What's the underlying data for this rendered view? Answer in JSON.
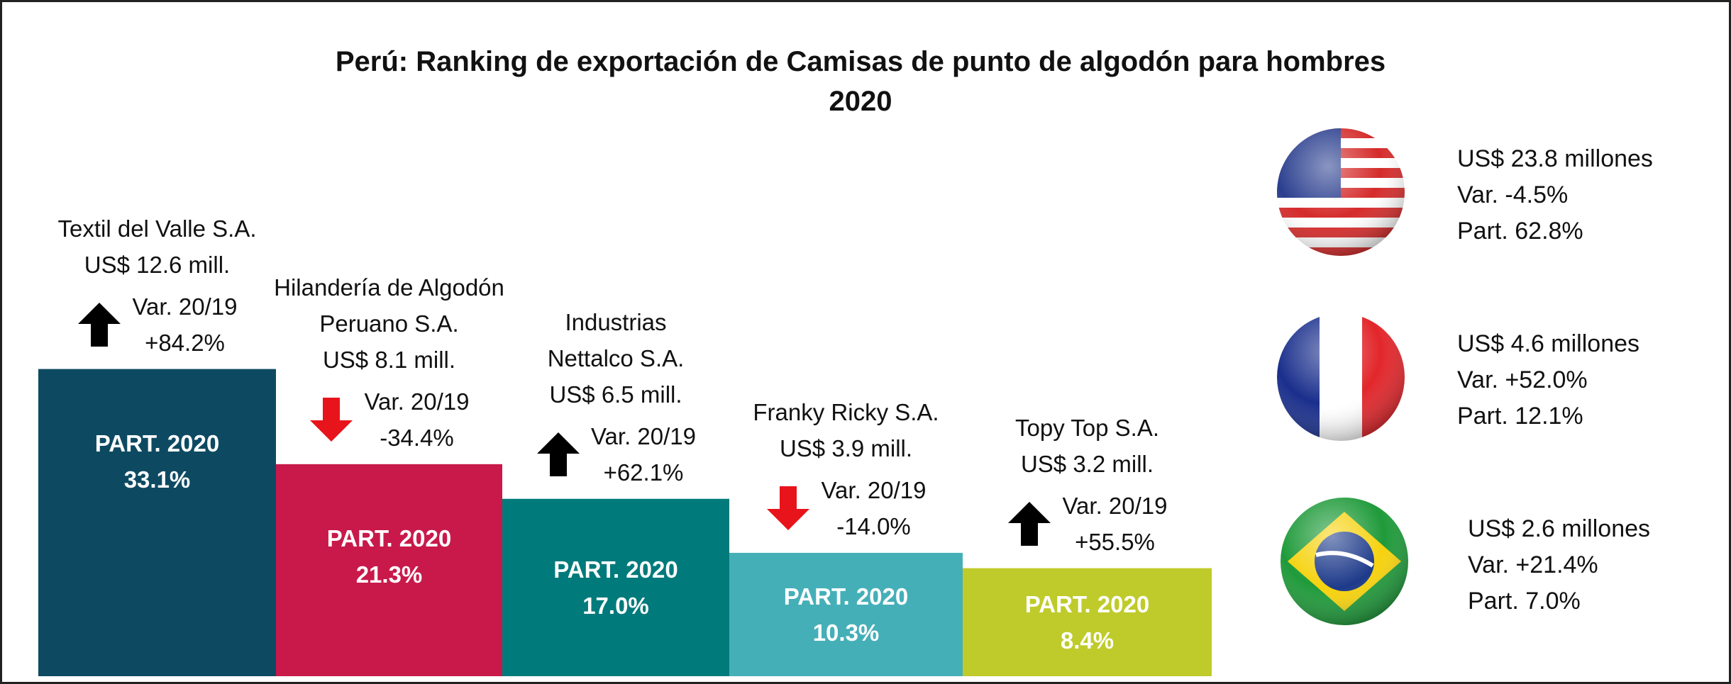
{
  "chart_data": {
    "type": "bar",
    "title": "Perú: Ranking de exportación de Camisas de punto de algodón para hombres",
    "subtitle": "2020",
    "categories": [
      "Textil del Valle S.A.",
      "Hilandería de Algodón Peruano S.A.",
      "Industrias Nettalco S.A.",
      "Franky Ricky S.A.",
      "Topy Top S.A."
    ],
    "export_labels": [
      "US$ 12.6 mill.",
      "US$ 8.1 mill.",
      "US$ 6.5 mill.",
      "US$ 3.9 mill.",
      "US$ 3.2 mill."
    ],
    "change_caption": "Var. 20/19",
    "changes": [
      84.2,
      -34.4,
      62.1,
      -14.0,
      55.5
    ],
    "change_labels": [
      "+84.2%",
      "-34.4%",
      "+62.1%",
      "-14.0%",
      "+55.5%"
    ],
    "share_caption": "PART. 2020",
    "values": [
      33.1,
      21.3,
      17.0,
      10.3,
      8.4
    ],
    "value_labels": [
      "33.1%",
      "21.3%",
      "17.0%",
      "10.3%",
      "8.4%"
    ],
    "colors": [
      "#0d4a62",
      "#c8194a",
      "#007a7b",
      "#45afb8",
      "#bfcb2a"
    ],
    "ylim": [
      -5,
      35
    ],
    "markets": [
      {
        "exports": "US$ 23.8 millones",
        "change": "Var. -4.5%",
        "share": "Part. 62.8%"
      },
      {
        "exports": "US$ 4.6 millones",
        "change": "Var. +52.0%",
        "share": "Part. 12.1%"
      },
      {
        "exports": "US$ 2.6 millones",
        "change": "Var. +21.4%",
        "share": "Part. 7.0%"
      }
    ]
  }
}
